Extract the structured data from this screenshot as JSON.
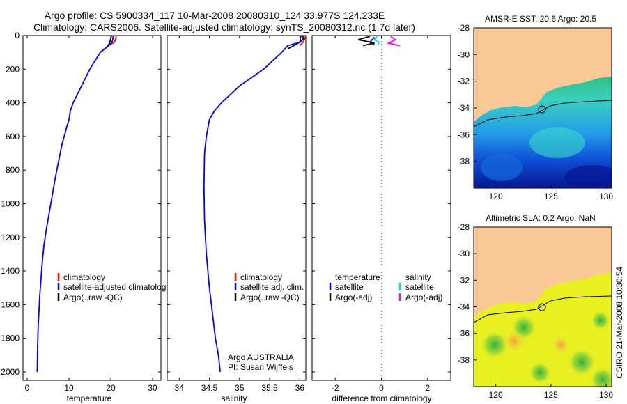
{
  "title_line1": "Argo profile: CS 5900334_117 10-Mar-2008 20080310_124 33.977S 124.233E",
  "title_line2": "Climatology: CARS2006. Satellite-adjusted climatology: synTS_20080312.nc (1.7d later)",
  "credit": "CSIRO 21-Mar-2008 10:30:54",
  "chart_data": [
    {
      "type": "line",
      "name": "temperature-panel",
      "xlabel": "temperature",
      "xlim": [
        -1,
        32
      ],
      "ylim": [
        0,
        2050
      ],
      "xticks": [
        0,
        10,
        20,
        30
      ],
      "yticks": [
        0,
        200,
        400,
        600,
        800,
        1000,
        1200,
        1400,
        1600,
        1800,
        2000
      ],
      "legend": [
        "climatology",
        "satellite-adjusted climatology",
        "Argo(..raw -QC)"
      ],
      "legend_colors": [
        "#ff0000",
        "#0000ff",
        "#000000"
      ],
      "series": [
        {
          "name": "climatology",
          "color": "#ff0000",
          "x": [
            21.3,
            21.2,
            20.8,
            19.5,
            17.5
          ],
          "y": [
            0,
            20,
            40,
            60,
            100
          ]
        },
        {
          "name": "Argo(..raw -QC)",
          "color": "#000000",
          "x": [
            20.2,
            20.0,
            19.9,
            19.6,
            19.0,
            18.0,
            17.5
          ],
          "y": [
            0,
            15,
            30,
            50,
            70,
            90,
            100
          ]
        },
        {
          "name": "satellite-adjusted climatology",
          "color": "#0000ff",
          "x": [
            20.6,
            20.5,
            20.3,
            19.5,
            18.5,
            17.5,
            17.0,
            16.2,
            15.0,
            14.0,
            13.0,
            12.0,
            11.0,
            10.3,
            10.0,
            9.4,
            8.3,
            7.5,
            6.7,
            6.0,
            5.3,
            4.6,
            4.0,
            3.6,
            3.3,
            3.0,
            2.8,
            2.6,
            2.5,
            2.4
          ],
          "y": [
            0,
            20,
            40,
            60,
            80,
            100,
            120,
            150,
            200,
            250,
            300,
            350,
            400,
            450,
            500,
            550,
            650,
            750,
            850,
            950,
            1050,
            1150,
            1250,
            1350,
            1450,
            1550,
            1650,
            1750,
            1850,
            2000
          ]
        }
      ]
    },
    {
      "type": "line",
      "name": "salinity-panel",
      "xlabel": "salinity",
      "xlim": [
        33.8,
        36.1
      ],
      "ylim": [
        0,
        2050
      ],
      "xticks": [
        34,
        34.5,
        35,
        35.5,
        36
      ],
      "xtick_labels": [
        "34",
        "34.5",
        "35",
        "35.5",
        "36"
      ],
      "legend": [
        "climatology",
        "satellite adj. clim.",
        "Argo(..raw -QC)"
      ],
      "legend_colors": [
        "#ff0000",
        "#0000ff",
        "#000000"
      ],
      "annotation_line1": "Argo AUSTRALIA",
      "annotation_line2": "PI: Susan Wijffels",
      "series": [
        {
          "name": "climatology",
          "color": "#ff0000",
          "x": [
            36.1,
            36.08,
            36.05,
            36.0
          ],
          "y": [
            0,
            20,
            40,
            60
          ]
        },
        {
          "name": "Argo(..raw -QC)",
          "color": "#000000",
          "x": [
            36.05,
            36.06,
            36.0,
            35.9,
            35.8
          ],
          "y": [
            0,
            20,
            40,
            60,
            80
          ]
        },
        {
          "name": "satellite adj. clim.",
          "color": "#0000ff",
          "x": [
            36.02,
            36.0,
            35.8,
            35.7,
            35.55,
            35.4,
            35.2,
            35.0,
            34.85,
            34.7,
            34.58,
            34.5,
            34.45,
            34.42,
            34.41,
            34.42,
            34.45,
            34.5,
            34.55,
            34.6,
            34.65,
            34.68
          ],
          "y": [
            0,
            40,
            60,
            100,
            150,
            200,
            250,
            300,
            350,
            400,
            450,
            500,
            600,
            700,
            900,
            1100,
            1300,
            1500,
            1650,
            1800,
            1900,
            2000
          ]
        }
      ]
    },
    {
      "type": "line",
      "name": "difference-panel",
      "xlabel": "difference from climatology",
      "xlim": [
        -3,
        3
      ],
      "ylim": [
        0,
        2050
      ],
      "xticks": [
        -2,
        0,
        2
      ],
      "legend_temperature_header": "temperature",
      "legend_salinity_header": "salinity",
      "legend_temperature": [
        "satellite",
        "Argo(-adj)"
      ],
      "legend_salinity": [
        "satellite",
        "Argo(-adj)"
      ],
      "legend_colors_temperature": [
        "#0000ff",
        "#000000"
      ],
      "legend_colors_salinity": [
        "#00dddd",
        "#ff00ff"
      ],
      "series": [
        {
          "name": "temperature satellite",
          "color": "#0000ff",
          "x": [
            -0.3,
            -0.4,
            -0.5,
            -0.3
          ],
          "y": [
            10,
            25,
            40,
            55
          ]
        },
        {
          "name": "temperature Argo(-adj)",
          "color": "#000000",
          "x": [
            -0.5,
            -1.0,
            -0.3,
            -0.8
          ],
          "y": [
            5,
            25,
            45,
            60
          ]
        },
        {
          "name": "salinity satellite",
          "color": "#00dddd",
          "x": [
            -0.2,
            -0.3,
            -0.1,
            -0.15
          ],
          "y": [
            5,
            25,
            40,
            55
          ]
        },
        {
          "name": "salinity Argo(-adj)",
          "color": "#ff00ff",
          "x": [
            0.4,
            0.6,
            0.3,
            0.8
          ],
          "y": [
            5,
            25,
            45,
            60
          ]
        }
      ]
    },
    {
      "type": "heatmap",
      "name": "sst-map",
      "title": "AMSR-E SST: 20.6 Argo: 20.5",
      "xlim": [
        118,
        130.5
      ],
      "ylim": [
        -40,
        -28
      ],
      "xticks": [
        120,
        125,
        130
      ],
      "yticks": [
        -28,
        -30,
        -32,
        -34,
        -36,
        -38
      ],
      "marker": [
        124.233,
        -33.977
      ]
    },
    {
      "type": "heatmap",
      "name": "sla-map",
      "title": "Altimetric SLA: 0.2 Argo: NaN",
      "xlim": [
        118,
        130.5
      ],
      "ylim": [
        -40,
        -28
      ],
      "xticks": [
        120,
        125,
        130
      ],
      "yticks": [
        -28,
        -30,
        -32,
        -34,
        -36,
        -38
      ],
      "marker": [
        124.233,
        -33.977
      ]
    }
  ]
}
